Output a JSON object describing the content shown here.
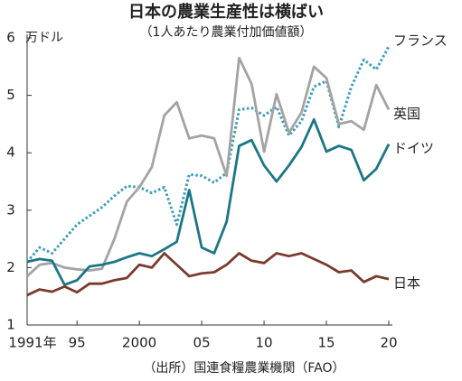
{
  "chart_data": {
    "type": "line",
    "title": "日本の農業生産性は横ばい",
    "subtitle": "（1人あたり農業付加価値額）",
    "y_unit_label": "万ドル",
    "source": "（出所）国連食糧農業機関（FAO）",
    "x": [
      1991,
      1992,
      1993,
      1994,
      1995,
      1996,
      1997,
      1998,
      1999,
      2000,
      2001,
      2002,
      2003,
      2004,
      2005,
      2006,
      2007,
      2008,
      2009,
      2010,
      2011,
      2012,
      2013,
      2014,
      2015,
      2016,
      2017,
      2018,
      2019,
      2020
    ],
    "xlim": [
      1991,
      2020
    ],
    "xticks": [
      {
        "value": 1991,
        "label": "1991年"
      },
      {
        "value": 1995,
        "label": "95"
      },
      2000,
      {
        "value": 2005,
        "label": "05"
      },
      {
        "value": 2010,
        "label": "10"
      },
      {
        "value": 2015,
        "label": "15"
      },
      {
        "value": 2020,
        "label": "20"
      }
    ],
    "ylim": [
      1,
      6
    ],
    "yticks": [
      1,
      2,
      3,
      4,
      5,
      6
    ],
    "series": [
      {
        "name": "フランス",
        "color": "#3a9cbc",
        "line_style": "dotted",
        "values": [
          2.1,
          2.35,
          2.25,
          2.5,
          2.75,
          2.9,
          3.05,
          3.25,
          3.42,
          3.4,
          3.3,
          3.4,
          2.75,
          3.62,
          3.6,
          3.48,
          3.65,
          4.75,
          4.78,
          4.65,
          4.8,
          4.3,
          4.55,
          5.15,
          5.25,
          4.45,
          5.15,
          5.62,
          5.45,
          5.85
        ]
      },
      {
        "name": "英国",
        "color": "#a3a3a3",
        "line_style": "solid",
        "values": [
          1.85,
          2.05,
          2.08,
          2.0,
          1.97,
          1.95,
          1.98,
          2.5,
          3.15,
          3.4,
          3.75,
          4.65,
          4.88,
          4.25,
          4.3,
          4.25,
          3.6,
          5.65,
          5.2,
          4.02,
          5.02,
          4.35,
          4.7,
          5.5,
          5.3,
          4.5,
          4.55,
          4.4,
          5.18,
          4.75
        ]
      },
      {
        "name": "ドイツ",
        "color": "#1b7686",
        "line_style": "solid",
        "values": [
          2.1,
          2.15,
          2.12,
          1.7,
          1.78,
          2.02,
          2.05,
          2.1,
          2.18,
          2.25,
          2.2,
          2.32,
          2.45,
          3.35,
          2.35,
          2.25,
          2.8,
          4.12,
          4.22,
          3.78,
          3.5,
          3.78,
          4.1,
          4.58,
          4.02,
          4.12,
          4.05,
          3.52,
          3.72,
          4.15
        ]
      },
      {
        "name": "日本",
        "color": "#7a3a2c",
        "line_style": "solid",
        "values": [
          1.52,
          1.62,
          1.58,
          1.67,
          1.57,
          1.72,
          1.72,
          1.78,
          1.82,
          2.05,
          2.0,
          2.25,
          2.05,
          1.85,
          1.9,
          1.92,
          2.05,
          2.25,
          2.12,
          2.08,
          2.25,
          2.2,
          2.25,
          2.15,
          2.05,
          1.92,
          1.95,
          1.75,
          1.85,
          1.8
        ]
      }
    ]
  }
}
